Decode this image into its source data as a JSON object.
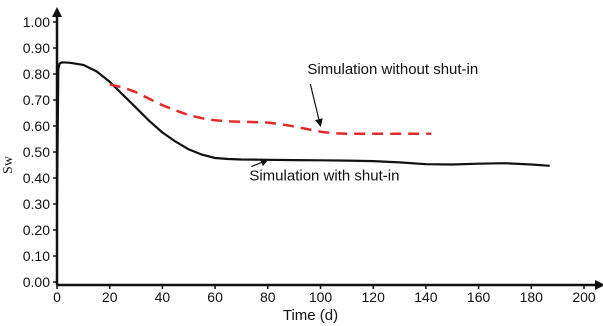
{
  "chart_data": {
    "type": "line",
    "title": "",
    "xlabel": "Time (d)",
    "ylabel": "Sw",
    "xlim": [
      0,
      200
    ],
    "ylim": [
      0,
      1.05
    ],
    "xticks": [
      "0",
      "20",
      "40",
      "60",
      "80",
      "100",
      "120",
      "140",
      "160",
      "180",
      "200"
    ],
    "yticks": [
      "0.00",
      "0.10",
      "0.20",
      "0.30",
      "0.40",
      "0.50",
      "0.60",
      "0.70",
      "0.80",
      "0.90",
      "1.00"
    ],
    "grid": false,
    "series": [
      {
        "name": "Simulation with shut-in",
        "color": "#111111",
        "style": "solid",
        "x": [
          0,
          0.5,
          1,
          2,
          5,
          10,
          15,
          20,
          25,
          30,
          35,
          40,
          45,
          50,
          55,
          60,
          65,
          70,
          80,
          90,
          100,
          110,
          120,
          130,
          140,
          150,
          160,
          170,
          180,
          187
        ],
        "y": [
          0.3,
          0.82,
          0.84,
          0.845,
          0.843,
          0.835,
          0.81,
          0.77,
          0.72,
          0.67,
          0.62,
          0.575,
          0.54,
          0.51,
          0.49,
          0.477,
          0.473,
          0.471,
          0.47,
          0.469,
          0.468,
          0.467,
          0.465,
          0.46,
          0.453,
          0.452,
          0.455,
          0.457,
          0.452,
          0.447
        ]
      },
      {
        "name": "Simulation without shut-in",
        "color": "#e32b2b",
        "style": "dashed",
        "x": [
          20,
          25,
          30,
          35,
          40,
          45,
          50,
          55,
          60,
          65,
          70,
          75,
          80,
          85,
          90,
          95,
          100,
          105,
          110,
          120,
          130,
          140,
          142
        ],
        "y": [
          0.76,
          0.748,
          0.73,
          0.705,
          0.68,
          0.66,
          0.642,
          0.63,
          0.622,
          0.618,
          0.616,
          0.615,
          0.613,
          0.607,
          0.598,
          0.588,
          0.578,
          0.572,
          0.57,
          0.57,
          0.57,
          0.57,
          0.57
        ]
      }
    ],
    "annotations": [
      {
        "text": "Simulation without shut-in",
        "x": 95,
        "y": 0.8,
        "arrow_to": [
          100,
          0.6
        ]
      },
      {
        "text": "Simulation with shut-in",
        "x": 73,
        "y": 0.39,
        "arrow_to": [
          80,
          0.47
        ]
      }
    ]
  }
}
